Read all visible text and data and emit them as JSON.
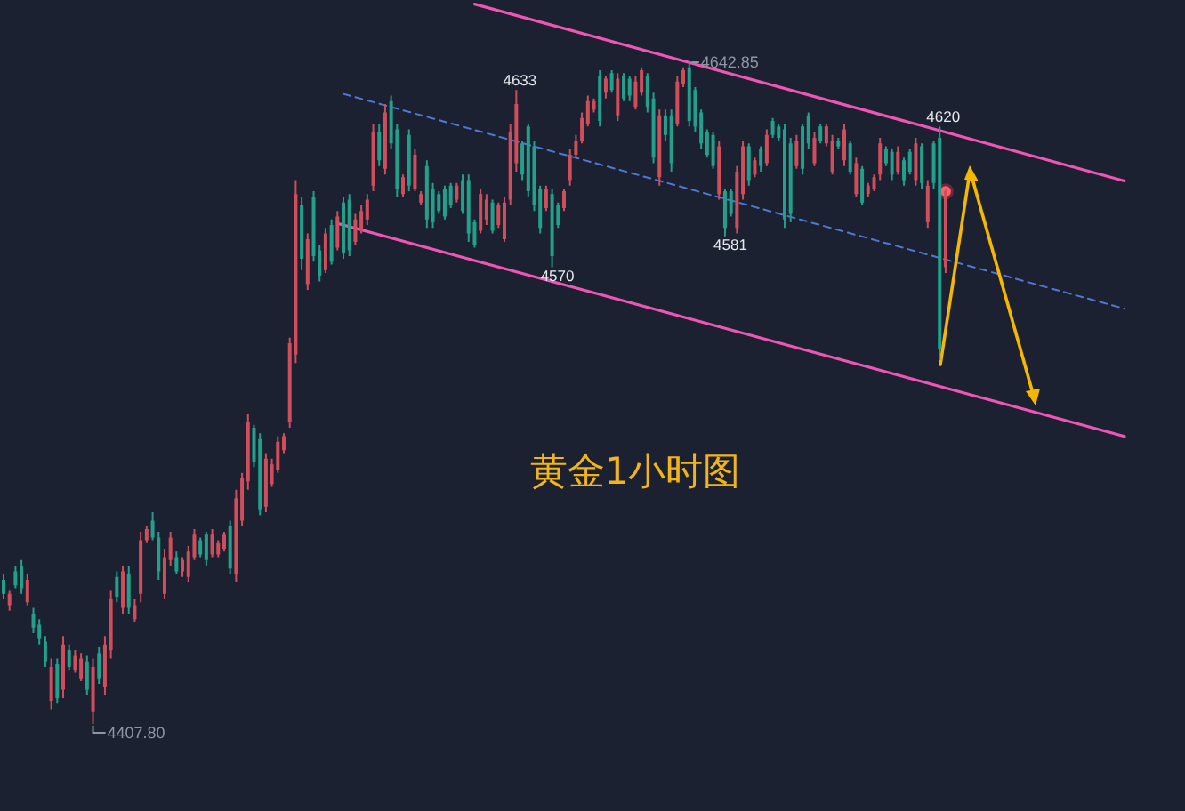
{
  "chart_data": {
    "type": "candlestick",
    "title": "黄金1小时图",
    "categories": [
      null,
      null,
      null,
      null,
      null,
      null,
      null,
      null,
      null,
      null,
      null,
      null,
      null,
      null,
      null,
      null,
      null,
      null,
      null,
      null,
      null,
      null,
      null,
      null,
      null,
      null,
      null,
      null,
      null,
      null,
      null,
      null,
      null,
      null,
      null,
      null,
      null,
      null,
      null,
      null,
      null,
      null,
      null,
      null,
      null,
      null,
      null,
      null,
      null,
      null,
      null,
      null,
      null,
      null,
      null,
      null,
      null,
      null,
      null,
      null,
      null,
      null,
      null,
      null,
      null,
      null,
      null,
      null,
      null,
      null,
      null,
      null,
      null,
      null,
      null,
      null,
      null,
      null,
      null,
      null,
      null,
      null,
      null,
      null,
      null,
      null,
      null,
      null,
      null,
      null,
      null,
      null,
      null,
      null,
      null,
      null,
      null,
      null,
      null,
      null,
      null,
      null,
      null,
      null,
      null,
      null,
      null,
      null,
      null,
      null,
      null,
      null,
      null,
      null,
      null,
      null,
      null,
      null,
      null,
      null,
      null,
      null,
      null,
      null,
      null,
      null,
      null,
      null,
      null,
      null,
      null,
      null,
      null,
      null,
      null,
      null,
      null,
      null,
      null,
      null,
      null,
      null,
      null,
      null,
      null,
      null,
      null,
      null,
      null,
      null,
      null,
      null,
      null,
      null,
      null,
      null,
      null,
      null,
      null,
      null,
      null,
      null,
      null,
      null,
      null,
      null,
      null,
      null,
      null,
      null,
      null,
      null,
      null,
      null,
      null,
      null,
      null,
      null,
      null,
      null,
      null,
      null,
      null,
      null,
      null,
      null,
      null,
      null,
      null
    ],
    "ohlc": [
      [
        4459,
        4461,
        4452,
        4454
      ],
      [
        4450,
        4455,
        4448,
        4454
      ],
      [
        4462,
        4464,
        4456,
        4457
      ],
      [
        4464,
        4466,
        4454,
        4456
      ],
      [
        4451,
        4461,
        4450,
        4459
      ],
      [
        4447,
        4449,
        4440,
        4442
      ],
      [
        4443,
        4445,
        4436,
        4438
      ],
      [
        4437,
        4439,
        4428,
        4430
      ],
      [
        4416,
        4431,
        4413,
        4428
      ],
      [
        4429,
        4431,
        4415,
        4417
      ],
      [
        4420,
        4439,
        4417,
        4436
      ],
      [
        4434,
        4436,
        4427,
        4428
      ],
      [
        4427,
        4434,
        4426,
        4432
      ],
      [
        4424,
        4433,
        4423,
        4431
      ],
      [
        4430,
        4432,
        4418,
        4420
      ],
      [
        4412,
        4431,
        4407.8,
        4428
      ],
      [
        4433,
        4435,
        4422,
        4424
      ],
      [
        4421,
        4439,
        4418,
        4436
      ],
      [
        4434,
        4455,
        4431,
        4452
      ],
      [
        4460,
        4462,
        4451,
        4453
      ],
      [
        4449,
        4464,
        4447,
        4462
      ],
      [
        4461,
        4464,
        4447,
        4449
      ],
      [
        4445,
        4452,
        4444,
        4450
      ],
      [
        4454,
        4476,
        4451,
        4473
      ],
      [
        4473,
        4478,
        4472,
        4477
      ],
      [
        4480,
        4483,
        4473,
        4474
      ],
      [
        4474,
        4476,
        4459,
        4462
      ],
      [
        4454,
        4470,
        4452,
        4467
      ],
      [
        4466,
        4476,
        4464,
        4474
      ],
      [
        4467,
        4469,
        4461,
        4462
      ],
      [
        4462,
        4467,
        4460,
        4466
      ],
      [
        4460,
        4471,
        4458,
        4469
      ],
      [
        4467,
        4477,
        4466,
        4475
      ],
      [
        4473,
        4474,
        4467,
        4468
      ],
      [
        4475,
        4476,
        4464,
        4466
      ],
      [
        4468,
        4477,
        4467,
        4475
      ],
      [
        4468,
        4473,
        4467,
        4472
      ],
      [
        4470,
        4476,
        4469,
        4475
      ],
      [
        4478,
        4480,
        4461,
        4463
      ],
      [
        4461,
        4491,
        4458,
        4488
      ],
      [
        4480,
        4497,
        4478,
        4495
      ],
      [
        4494,
        4518,
        4491,
        4515
      ],
      [
        4513,
        4514,
        4499,
        4501
      ],
      [
        4509,
        4511,
        4482,
        4484
      ],
      [
        4485,
        4504,
        4483,
        4502
      ],
      [
        4493,
        4502,
        4492,
        4500
      ],
      [
        4498,
        4510,
        4497,
        4508
      ],
      [
        4505,
        4511,
        4504,
        4510
      ],
      [
        4515,
        4545,
        4513,
        4543
      ],
      [
        4539,
        4601,
        4536,
        4596
      ],
      [
        4592,
        4595,
        4569,
        4573
      ],
      [
        4564,
        4582,
        4562,
        4580
      ],
      [
        4595,
        4597,
        4572,
        4574
      ],
      [
        4576,
        4578,
        4565,
        4567
      ],
      [
        4569,
        4584,
        4568,
        4582
      ],
      [
        4585,
        4587,
        4571,
        4572
      ],
      [
        4577,
        4590,
        4576,
        4588
      ],
      [
        4593,
        4595,
        4573,
        4575
      ],
      [
        4594,
        4596,
        4574,
        4576
      ],
      [
        4579,
        4589,
        4578,
        4587
      ],
      [
        4583,
        4592,
        4582,
        4590
      ],
      [
        4587,
        4596,
        4585,
        4594
      ],
      [
        4599,
        4621,
        4597,
        4618
      ],
      [
        4618,
        4621,
        4606,
        4608
      ],
      [
        4605,
        4628,
        4603,
        4625
      ],
      [
        4629,
        4631,
        4612,
        4614
      ],
      [
        4619,
        4621,
        4595,
        4598
      ],
      [
        4596,
        4603,
        4595,
        4602
      ],
      [
        4617,
        4619,
        4597,
        4599
      ],
      [
        4598,
        4612,
        4597,
        4610
      ],
      [
        4593,
        4597,
        4592,
        4596
      ],
      [
        4606,
        4608,
        4584,
        4587
      ],
      [
        4598,
        4600,
        4584,
        4586
      ],
      [
        4596,
        4597,
        4589,
        4590
      ],
      [
        4598,
        4599,
        4587,
        4588
      ],
      [
        4599,
        4600,
        4591,
        4592
      ],
      [
        4594,
        4600,
        4593,
        4599
      ],
      [
        4601,
        4603,
        4589,
        4590
      ],
      [
        4601,
        4603,
        4579,
        4582
      ],
      [
        4586,
        4587,
        4577,
        4578
      ],
      [
        4583,
        4598,
        4582,
        4596
      ],
      [
        4587,
        4596,
        4585,
        4594
      ],
      [
        4593,
        4594,
        4582,
        4583
      ],
      [
        4585,
        4593,
        4584,
        4592
      ],
      [
        4580,
        4595,
        4579,
        4593
      ],
      [
        4594,
        4621,
        4592,
        4618
      ],
      [
        4607,
        4633,
        4604,
        4628
      ],
      [
        4614,
        4615,
        4601,
        4603
      ],
      [
        4620,
        4621,
        4595,
        4597
      ],
      [
        4613,
        4615,
        4590,
        4592
      ],
      [
        4598,
        4599,
        4582,
        4584
      ],
      [
        4591,
        4599,
        4590,
        4598
      ],
      [
        4596,
        4598,
        4570,
        4574
      ],
      [
        4592,
        4593,
        4584,
        4585
      ],
      [
        4591,
        4598,
        4590,
        4597
      ],
      [
        4601,
        4612,
        4599,
        4610
      ],
      [
        4610,
        4617,
        4609,
        4615
      ],
      [
        4615,
        4625,
        4614,
        4623
      ],
      [
        4621,
        4631,
        4620,
        4629
      ],
      [
        4626,
        4630,
        4625,
        4629
      ],
      [
        4638,
        4640,
        4620,
        4622
      ],
      [
        4632,
        4638,
        4630,
        4637
      ],
      [
        4639,
        4640,
        4632,
        4633
      ],
      [
        4624,
        4639,
        4622,
        4637
      ],
      [
        4638,
        4639,
        4629,
        4630
      ],
      [
        4637,
        4638,
        4629,
        4631
      ],
      [
        4627,
        4638,
        4626,
        4636
      ],
      [
        4632,
        4641,
        4631,
        4640
      ],
      [
        4638,
        4639,
        4625,
        4627
      ],
      [
        4630,
        4632,
        4607,
        4609
      ],
      [
        4602,
        4626,
        4599,
        4624
      ],
      [
        4624,
        4626,
        4615,
        4617
      ],
      [
        4624,
        4626,
        4604,
        4607
      ],
      [
        4621,
        4638,
        4620,
        4636
      ],
      [
        4635,
        4641,
        4634,
        4640
      ],
      [
        4641,
        4642.85,
        4620,
        4622
      ],
      [
        4633,
        4634,
        4618,
        4620
      ],
      [
        4625,
        4626,
        4612,
        4614
      ],
      [
        4618,
        4619,
        4609,
        4610
      ],
      [
        4617,
        4618,
        4605,
        4606
      ],
      [
        4596,
        4615,
        4594,
        4613
      ],
      [
        4597,
        4598,
        4581,
        4584
      ],
      [
        4597,
        4598,
        4588,
        4589
      ],
      [
        4584,
        4606,
        4582,
        4604
      ],
      [
        4596,
        4615,
        4594,
        4613
      ],
      [
        4613,
        4614,
        4599,
        4601
      ],
      [
        4603,
        4609,
        4602,
        4608
      ],
      [
        4612,
        4613,
        4604,
        4606
      ],
      [
        4607,
        4619,
        4606,
        4617
      ],
      [
        4622,
        4623,
        4616,
        4617
      ],
      [
        4620,
        4621,
        4615,
        4616
      ],
      [
        4619,
        4621,
        4584,
        4587
      ],
      [
        4614,
        4616,
        4586,
        4589
      ],
      [
        4606,
        4617,
        4605,
        4615
      ],
      [
        4620,
        4621,
        4603,
        4605
      ],
      [
        4624,
        4625,
        4612,
        4614
      ],
      [
        4607,
        4618,
        4606,
        4616
      ],
      [
        4620,
        4621,
        4614,
        4615
      ],
      [
        4614,
        4621,
        4613,
        4620
      ],
      [
        4604,
        4617,
        4603,
        4615
      ],
      [
        4615,
        4616,
        4612,
        4613
      ],
      [
        4608,
        4621,
        4606,
        4619
      ],
      [
        4614,
        4615,
        4603,
        4604
      ],
      [
        4596,
        4609,
        4595,
        4607
      ],
      [
        4605,
        4606,
        4592,
        4593
      ],
      [
        4596,
        4600,
        4595,
        4599
      ],
      [
        4598,
        4603,
        4597,
        4602
      ],
      [
        4603,
        4616,
        4601,
        4614
      ],
      [
        4612,
        4613,
        4606,
        4607
      ],
      [
        4611,
        4612,
        4601,
        4603
      ],
      [
        4604,
        4613,
        4603,
        4611
      ],
      [
        4608,
        4609,
        4599,
        4601
      ],
      [
        4611,
        4612,
        4603,
        4604
      ],
      [
        4601,
        4616,
        4599,
        4614
      ],
      [
        4613,
        4614,
        4598,
        4600
      ],
      [
        4586,
        4601,
        4584,
        4599
      ],
      [
        4614,
        4615,
        4598,
        4600
      ],
      [
        4616,
        4620,
        4537,
        4541
      ],
      [
        4570,
        4598,
        4568,
        4597
      ],
      null,
      null,
      null,
      null,
      null,
      null,
      null,
      null,
      null,
      null,
      null,
      null,
      null,
      null,
      null,
      null,
      null,
      null,
      null,
      null,
      null,
      null,
      null,
      null,
      null,
      null,
      null,
      null,
      null,
      null
    ],
    "colors": [
      "#22a08b",
      "#d04e5c",
      "#22a08b",
      "#22a08b",
      "#d04e5c",
      "#22a08b",
      "#22a08b",
      "#22a08b",
      "#d04e5c",
      "#22a08b",
      "#d04e5c",
      "#22a08b",
      "#d04e5c",
      "#d04e5c",
      "#22a08b",
      "#d04e5c",
      "#22a08b",
      "#d04e5c",
      "#d04e5c",
      "#22a08b",
      "#d04e5c",
      "#22a08b",
      "#d04e5c",
      "#d04e5c",
      "#d04e5c",
      "#22a08b",
      "#22a08b",
      "#d04e5c",
      "#d04e5c",
      "#22a08b",
      "#d04e5c",
      "#d04e5c",
      "#d04e5c",
      "#22a08b",
      "#22a08b",
      "#d04e5c",
      "#d04e5c",
      "#d04e5c",
      "#22a08b",
      "#d04e5c",
      "#d04e5c",
      "#d04e5c",
      "#22a08b",
      "#22a08b",
      "#d04e5c",
      "#d04e5c",
      "#d04e5c",
      "#d04e5c",
      "#d04e5c",
      "#d04e5c",
      "#22a08b",
      "#d04e5c",
      "#22a08b",
      "#22a08b",
      "#d04e5c",
      "#22a08b",
      "#d04e5c",
      "#22a08b",
      "#22a08b",
      "#d04e5c",
      "#d04e5c",
      "#d04e5c",
      "#d04e5c",
      "#22a08b",
      "#d04e5c",
      "#22a08b",
      "#22a08b",
      "#d04e5c",
      "#22a08b",
      "#d04e5c",
      "#d04e5c",
      "#22a08b",
      "#22a08b",
      "#22a08b",
      "#22a08b",
      "#22a08b",
      "#d04e5c",
      "#22a08b",
      "#22a08b",
      "#22a08b",
      "#d04e5c",
      "#d04e5c",
      "#22a08b",
      "#d04e5c",
      "#d04e5c",
      "#d04e5c",
      "#d04e5c",
      "#22a08b",
      "#22a08b",
      "#22a08b",
      "#22a08b",
      "#d04e5c",
      "#22a08b",
      "#22a08b",
      "#d04e5c",
      "#d04e5c",
      "#d04e5c",
      "#d04e5c",
      "#d04e5c",
      "#d04e5c",
      "#22a08b",
      "#d04e5c",
      "#22a08b",
      "#d04e5c",
      "#22a08b",
      "#22a08b",
      "#d04e5c",
      "#d04e5c",
      "#22a08b",
      "#22a08b",
      "#d04e5c",
      "#22a08b",
      "#22a08b",
      "#d04e5c",
      "#d04e5c",
      "#22a08b",
      "#22a08b",
      "#22a08b",
      "#22a08b",
      "#22a08b",
      "#d04e5c",
      "#22a08b",
      "#22a08b",
      "#d04e5c",
      "#d04e5c",
      "#22a08b",
      "#d04e5c",
      "#22a08b",
      "#d04e5c",
      "#22a08b",
      "#22a08b",
      "#22a08b",
      "#22a08b",
      "#d04e5c",
      "#22a08b",
      "#22a08b",
      "#d04e5c",
      "#22a08b",
      "#d04e5c",
      "#d04e5c",
      "#22a08b",
      "#d04e5c",
      "#22a08b",
      "#d04e5c",
      "#22a08b",
      "#d04e5c",
      "#d04e5c",
      "#d04e5c",
      "#22a08b",
      "#22a08b",
      "#d04e5c",
      "#22a08b",
      "#22a08b",
      "#d04e5c",
      "#22a08b",
      "#d04e5c",
      "#22a08b",
      "#22a08b",
      "#d04e5c",
      null,
      null,
      null,
      null,
      null,
      null,
      null,
      null,
      null,
      null,
      null,
      null,
      null,
      null,
      null,
      null,
      null,
      null,
      null,
      null,
      null,
      null,
      null,
      null,
      null,
      null,
      null,
      null,
      null,
      null
    ],
    "series": [
      {
        "type": "line",
        "color": "#ee55b4",
        "values": [
          null,
          null,
          null,
          null,
          null,
          null,
          null,
          null,
          null,
          null,
          null,
          null,
          null,
          null,
          null,
          null,
          null,
          null,
          null,
          null,
          null,
          null,
          null,
          null,
          null,
          null,
          null,
          null,
          null,
          null,
          null,
          null,
          null,
          null,
          null,
          null,
          null,
          null,
          null,
          null,
          null,
          null,
          null,
          null,
          null,
          null,
          null,
          null,
          null,
          null,
          null,
          null,
          null,
          null,
          null,
          null,
          null,
          null,
          null,
          null,
          null,
          null,
          null,
          null,
          null,
          null,
          null,
          null,
          null,
          null,
          null,
          null,
          null,
          null,
          null,
          null,
          null,
          null,
          null,
          4663.5,
          null,
          null,
          null,
          null,
          null,
          null,
          null,
          null,
          null,
          null,
          null,
          null,
          null,
          null,
          null,
          null,
          null,
          null,
          null,
          null,
          null,
          null,
          null,
          null,
          null,
          null,
          null,
          null,
          null,
          null,
          null,
          null,
          null,
          null,
          null,
          null,
          null,
          null,
          null,
          null,
          null,
          null,
          null,
          null,
          null,
          null,
          null,
          null,
          null,
          null,
          null,
          null,
          null,
          null,
          null,
          null,
          null,
          null,
          null,
          null,
          null,
          null,
          null,
          null,
          null,
          null,
          null,
          null,
          null,
          null,
          null,
          null,
          null,
          null,
          null,
          null,
          null,
          null,
          null,
          null,
          null,
          null,
          null,
          null,
          null,
          null,
          null,
          null,
          null,
          null,
          null,
          null,
          null,
          null,
          null,
          null,
          null,
          null,
          null,
          null,
          null,
          null,
          null,
          null,
          null,
          null,
          null,
          null,
          4600.7
        ]
      },
      {
        "type": "line",
        "color": "#ee55b4",
        "values": [
          null,
          null,
          null,
          null,
          null,
          null,
          null,
          null,
          null,
          null,
          null,
          null,
          null,
          null,
          null,
          null,
          null,
          null,
          null,
          null,
          null,
          null,
          null,
          null,
          null,
          null,
          null,
          null,
          null,
          null,
          null,
          null,
          null,
          null,
          null,
          null,
          null,
          null,
          null,
          null,
          null,
          null,
          null,
          null,
          null,
          null,
          null,
          null,
          null,
          null,
          null,
          null,
          null,
          null,
          null,
          null,
          4585.6,
          null,
          null,
          null,
          null,
          null,
          null,
          null,
          null,
          null,
          null,
          null,
          null,
          null,
          null,
          null,
          null,
          null,
          null,
          null,
          null,
          null,
          null,
          null,
          null,
          null,
          null,
          null,
          null,
          null,
          null,
          null,
          null,
          null,
          null,
          null,
          null,
          null,
          null,
          null,
          null,
          null,
          null,
          null,
          null,
          null,
          null,
          null,
          null,
          null,
          null,
          null,
          null,
          null,
          null,
          null,
          null,
          null,
          null,
          null,
          null,
          null,
          null,
          null,
          null,
          null,
          null,
          null,
          null,
          null,
          null,
          null,
          null,
          null,
          null,
          null,
          null,
          null,
          null,
          null,
          null,
          null,
          null,
          null,
          null,
          null,
          null,
          null,
          null,
          null,
          null,
          null,
          null,
          null,
          null,
          null,
          null,
          null,
          null,
          null,
          null,
          null,
          null,
          null,
          null,
          null,
          null,
          null,
          null,
          null,
          null,
          null,
          null,
          null,
          null,
          null,
          null,
          null,
          null,
          null,
          null,
          null,
          null,
          null,
          null,
          null,
          null,
          null,
          null,
          null,
          null,
          null,
          4509.9
        ]
      },
      {
        "type": "line",
        "color": "#4f78d4",
        "line_style": "dashed",
        "values": [
          null,
          null,
          null,
          null,
          null,
          null,
          null,
          null,
          null,
          null,
          null,
          null,
          null,
          null,
          null,
          null,
          null,
          null,
          null,
          null,
          null,
          null,
          null,
          null,
          null,
          null,
          null,
          null,
          null,
          null,
          null,
          null,
          null,
          null,
          null,
          null,
          null,
          null,
          null,
          null,
          null,
          null,
          null,
          null,
          null,
          null,
          null,
          null,
          null,
          null,
          null,
          null,
          null,
          null,
          null,
          null,
          null,
          4631.6,
          null,
          null,
          null,
          null,
          null,
          null,
          null,
          null,
          null,
          null,
          null,
          null,
          null,
          null,
          null,
          null,
          null,
          null,
          null,
          null,
          null,
          null,
          null,
          null,
          null,
          null,
          null,
          null,
          null,
          null,
          null,
          null,
          null,
          null,
          null,
          null,
          null,
          null,
          null,
          null,
          null,
          null,
          null,
          null,
          null,
          null,
          null,
          null,
          null,
          null,
          null,
          null,
          null,
          null,
          null,
          null,
          null,
          null,
          null,
          null,
          null,
          null,
          null,
          null,
          null,
          null,
          null,
          null,
          null,
          null,
          null,
          null,
          null,
          null,
          null,
          null,
          null,
          null,
          null,
          null,
          null,
          null,
          null,
          null,
          null,
          null,
          null,
          null,
          null,
          null,
          null,
          null,
          null,
          null,
          null,
          null,
          null,
          null,
          null,
          null,
          null,
          null,
          null,
          null,
          null,
          null,
          null,
          null,
          null,
          null,
          null,
          null,
          null,
          null,
          null,
          null,
          null,
          null,
          null,
          null,
          null,
          null,
          null,
          null,
          null,
          null,
          null,
          null,
          null,
          null,
          4555.3
        ]
      }
    ],
    "annotations": [
      {
        "text": "4633",
        "y": 4633
      },
      "4642.85",
      {
        "text": "4620",
        "y": 4620
      },
      {
        "text": "4570",
        "y": 4570
      },
      {
        "text": "4581",
        "y": 4581
      },
      "4407.80"
    ]
  }
}
